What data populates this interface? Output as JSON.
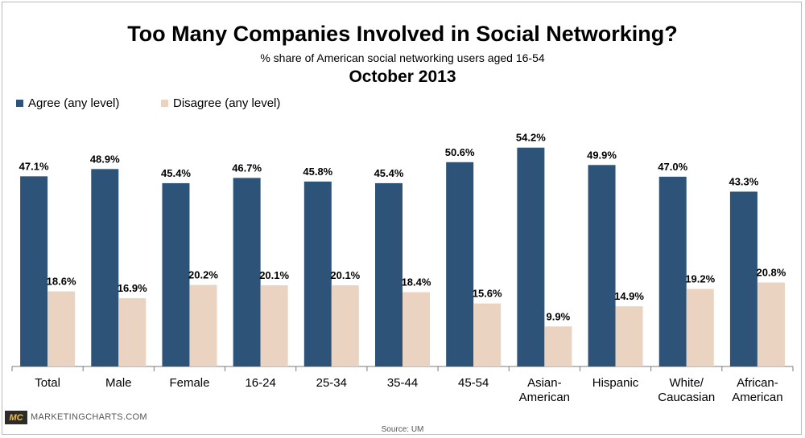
{
  "colors": {
    "agree": "#2d5478",
    "disagree": "#ead3c0",
    "axis": "#7a7a7a"
  },
  "legend": {
    "agree": "Agree (any level)",
    "disagree": "Disagree (any level)"
  },
  "footer": {
    "logo": "MC",
    "brand": "MARKETINGCHARTS.COM",
    "source": "Source: UM"
  },
  "chart_data": {
    "type": "bar",
    "title": "Too Many Companies Involved in Social Networking?",
    "subtitle": "% share of American social networking users aged 16-54",
    "date": "October 2013",
    "xlabel": "",
    "ylabel": "",
    "ylim": [
      0,
      60
    ],
    "grid": false,
    "legend_position": "top-left",
    "categories": [
      [
        "Total"
      ],
      [
        "Male"
      ],
      [
        "Female"
      ],
      [
        "16-24"
      ],
      [
        "25-34"
      ],
      [
        "35-44"
      ],
      [
        "45-54"
      ],
      [
        "Asian-",
        "American"
      ],
      [
        "Hispanic"
      ],
      [
        "White/",
        "Caucasian"
      ],
      [
        "African-",
        "American"
      ]
    ],
    "series": [
      {
        "name": "Agree (any level)",
        "values": [
          47.1,
          48.9,
          45.4,
          46.7,
          45.8,
          45.4,
          50.6,
          54.2,
          49.9,
          47.0,
          43.3
        ],
        "labels": [
          "47.1%",
          "48.9%",
          "45.4%",
          "46.7%",
          "45.8%",
          "45.4%",
          "50.6%",
          "54.2%",
          "49.9%",
          "47.0%",
          "43.3%"
        ]
      },
      {
        "name": "Disagree (any level)",
        "values": [
          18.6,
          16.9,
          20.2,
          20.1,
          20.1,
          18.4,
          15.6,
          9.9,
          14.9,
          19.2,
          20.8
        ],
        "labels": [
          "18.6%",
          "16.9%",
          "20.2%",
          "20.1%",
          "20.1%",
          "18.4%",
          "15.6%",
          "9.9%",
          "14.9%",
          "19.2%",
          "20.8%"
        ]
      }
    ]
  }
}
